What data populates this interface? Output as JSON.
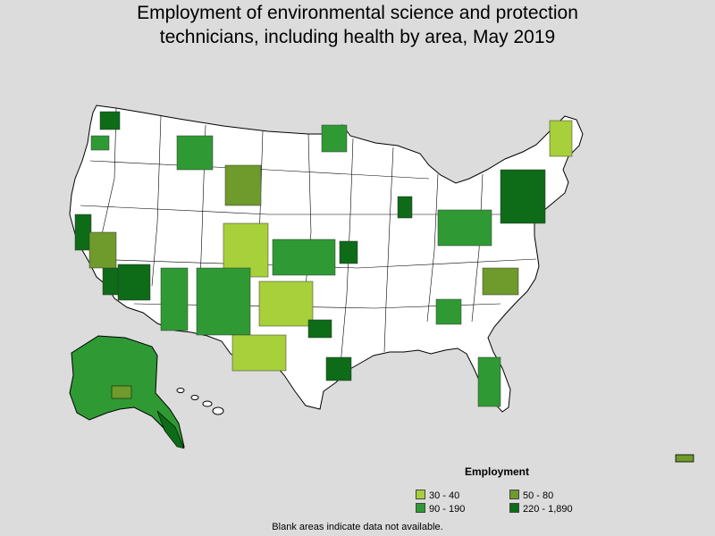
{
  "title_lines": [
    "Employment of environmental science and protection",
    "technicians, including health by area, May 2019"
  ],
  "legend": {
    "title": "Employment",
    "items": [
      {
        "label": "30 - 40",
        "color": "#a7d03a"
      },
      {
        "label": "50 - 80",
        "color": "#6f9a2c"
      },
      {
        "label": "90 - 190",
        "color": "#2f9a34"
      },
      {
        "label": "220 - 1,890",
        "color": "#0e6b17"
      }
    ]
  },
  "footnote": "Blank areas indicate data not available.",
  "colors": {
    "background": "#dcdcdc",
    "no_data": "#ffffff",
    "outline": "#000000"
  }
}
